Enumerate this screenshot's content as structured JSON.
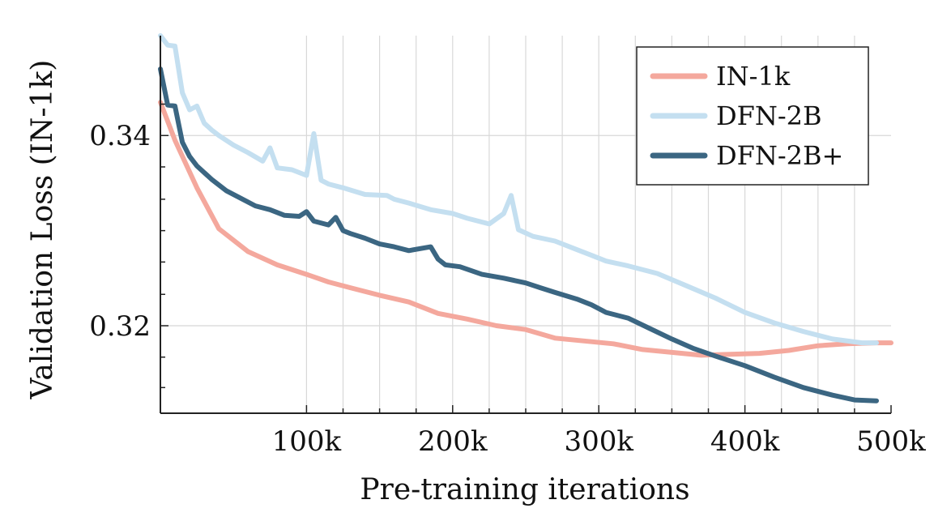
{
  "chart_data": {
    "type": "line",
    "title": "",
    "xlabel": "Pre-training iterations",
    "ylabel": "Validation Loss (IN-1k)",
    "xlim": [
      0,
      500000
    ],
    "ylim": [
      0.3108,
      0.3505
    ],
    "x_ticks": [
      {
        "value": 100000,
        "label": "100k"
      },
      {
        "value": 200000,
        "label": "200k"
      },
      {
        "value": 300000,
        "label": "300k"
      },
      {
        "value": 400000,
        "label": "400k"
      },
      {
        "value": 500000,
        "label": "500k"
      }
    ],
    "x_minor_ticks": [
      125000,
      150000,
      175000,
      225000,
      250000,
      275000,
      325000,
      350000,
      375000,
      425000,
      450000,
      475000
    ],
    "y_ticks": [
      {
        "value": 0.32,
        "label": "0.32"
      },
      {
        "value": 0.34,
        "label": "0.34"
      }
    ],
    "y_minor_ticks": [
      0.3135,
      0.3167,
      0.3233,
      0.3267,
      0.33,
      0.3333,
      0.3367,
      0.34,
      0.3433
    ],
    "grid": true,
    "legend_position": "top-right",
    "series": [
      {
        "name": "IN-1k",
        "color": "#f4a89d",
        "x": [
          0,
          10000,
          25000,
          40000,
          60000,
          80000,
          100000,
          115000,
          130000,
          150000,
          170000,
          190000,
          210000,
          230000,
          250000,
          270000,
          290000,
          310000,
          330000,
          350000,
          370000,
          390000,
          410000,
          430000,
          450000,
          470000,
          490000,
          500000
        ],
        "y": [
          0.3435,
          0.3395,
          0.3345,
          0.3302,
          0.3278,
          0.3264,
          0.3254,
          0.3246,
          0.324,
          0.3232,
          0.3225,
          0.3213,
          0.3207,
          0.32,
          0.3196,
          0.3187,
          0.3184,
          0.3181,
          0.3175,
          0.3172,
          0.3169,
          0.317,
          0.3171,
          0.3174,
          0.3179,
          0.3181,
          0.3182,
          0.3182
        ]
      },
      {
        "name": "DFN-2B",
        "color": "#c4dff0",
        "x": [
          0,
          5000,
          10000,
          15000,
          20000,
          25000,
          30000,
          35000,
          40000,
          50000,
          60000,
          70000,
          75000,
          80000,
          90000,
          100000,
          105000,
          110000,
          115000,
          125000,
          140000,
          155000,
          160000,
          170000,
          185000,
          200000,
          210000,
          225000,
          235000,
          240000,
          245000,
          255000,
          270000,
          285000,
          295000,
          305000,
          320000,
          340000,
          360000,
          380000,
          400000,
          420000,
          440000,
          460000,
          480000,
          490000
        ],
        "y": [
          0.3505,
          0.3495,
          0.3494,
          0.3445,
          0.3427,
          0.3431,
          0.3413,
          0.3406,
          0.34,
          0.339,
          0.3382,
          0.3373,
          0.3387,
          0.3366,
          0.3364,
          0.3358,
          0.3402,
          0.3353,
          0.3349,
          0.3345,
          0.3338,
          0.3337,
          0.3333,
          0.3329,
          0.3322,
          0.3318,
          0.3313,
          0.3307,
          0.3318,
          0.3337,
          0.3301,
          0.3294,
          0.3289,
          0.328,
          0.3274,
          0.3268,
          0.3263,
          0.3255,
          0.3242,
          0.3229,
          0.3214,
          0.3203,
          0.3194,
          0.3186,
          0.3182,
          0.3182
        ]
      },
      {
        "name": "DFN-2B+",
        "color": "#3b6682",
        "x": [
          0,
          5000,
          10000,
          15000,
          20000,
          25000,
          35000,
          45000,
          55000,
          65000,
          75000,
          85000,
          95000,
          100000,
          105000,
          115000,
          120000,
          125000,
          130000,
          140000,
          150000,
          160000,
          170000,
          185000,
          190000,
          195000,
          205000,
          220000,
          235000,
          250000,
          260000,
          270000,
          285000,
          295000,
          305000,
          320000,
          335000,
          350000,
          365000,
          380000,
          400000,
          420000,
          440000,
          460000,
          475000,
          490000
        ],
        "y": [
          0.347,
          0.3432,
          0.3431,
          0.3393,
          0.3378,
          0.3368,
          0.3354,
          0.3342,
          0.3334,
          0.3326,
          0.3322,
          0.3316,
          0.3315,
          0.332,
          0.331,
          0.3306,
          0.3314,
          0.33,
          0.3297,
          0.3292,
          0.3286,
          0.3283,
          0.3279,
          0.3283,
          0.327,
          0.3264,
          0.3262,
          0.3254,
          0.325,
          0.3245,
          0.324,
          0.3235,
          0.3228,
          0.3222,
          0.3214,
          0.3208,
          0.3197,
          0.3186,
          0.3176,
          0.3168,
          0.3158,
          0.3146,
          0.3135,
          0.3127,
          0.3122,
          0.3121
        ]
      }
    ]
  }
}
